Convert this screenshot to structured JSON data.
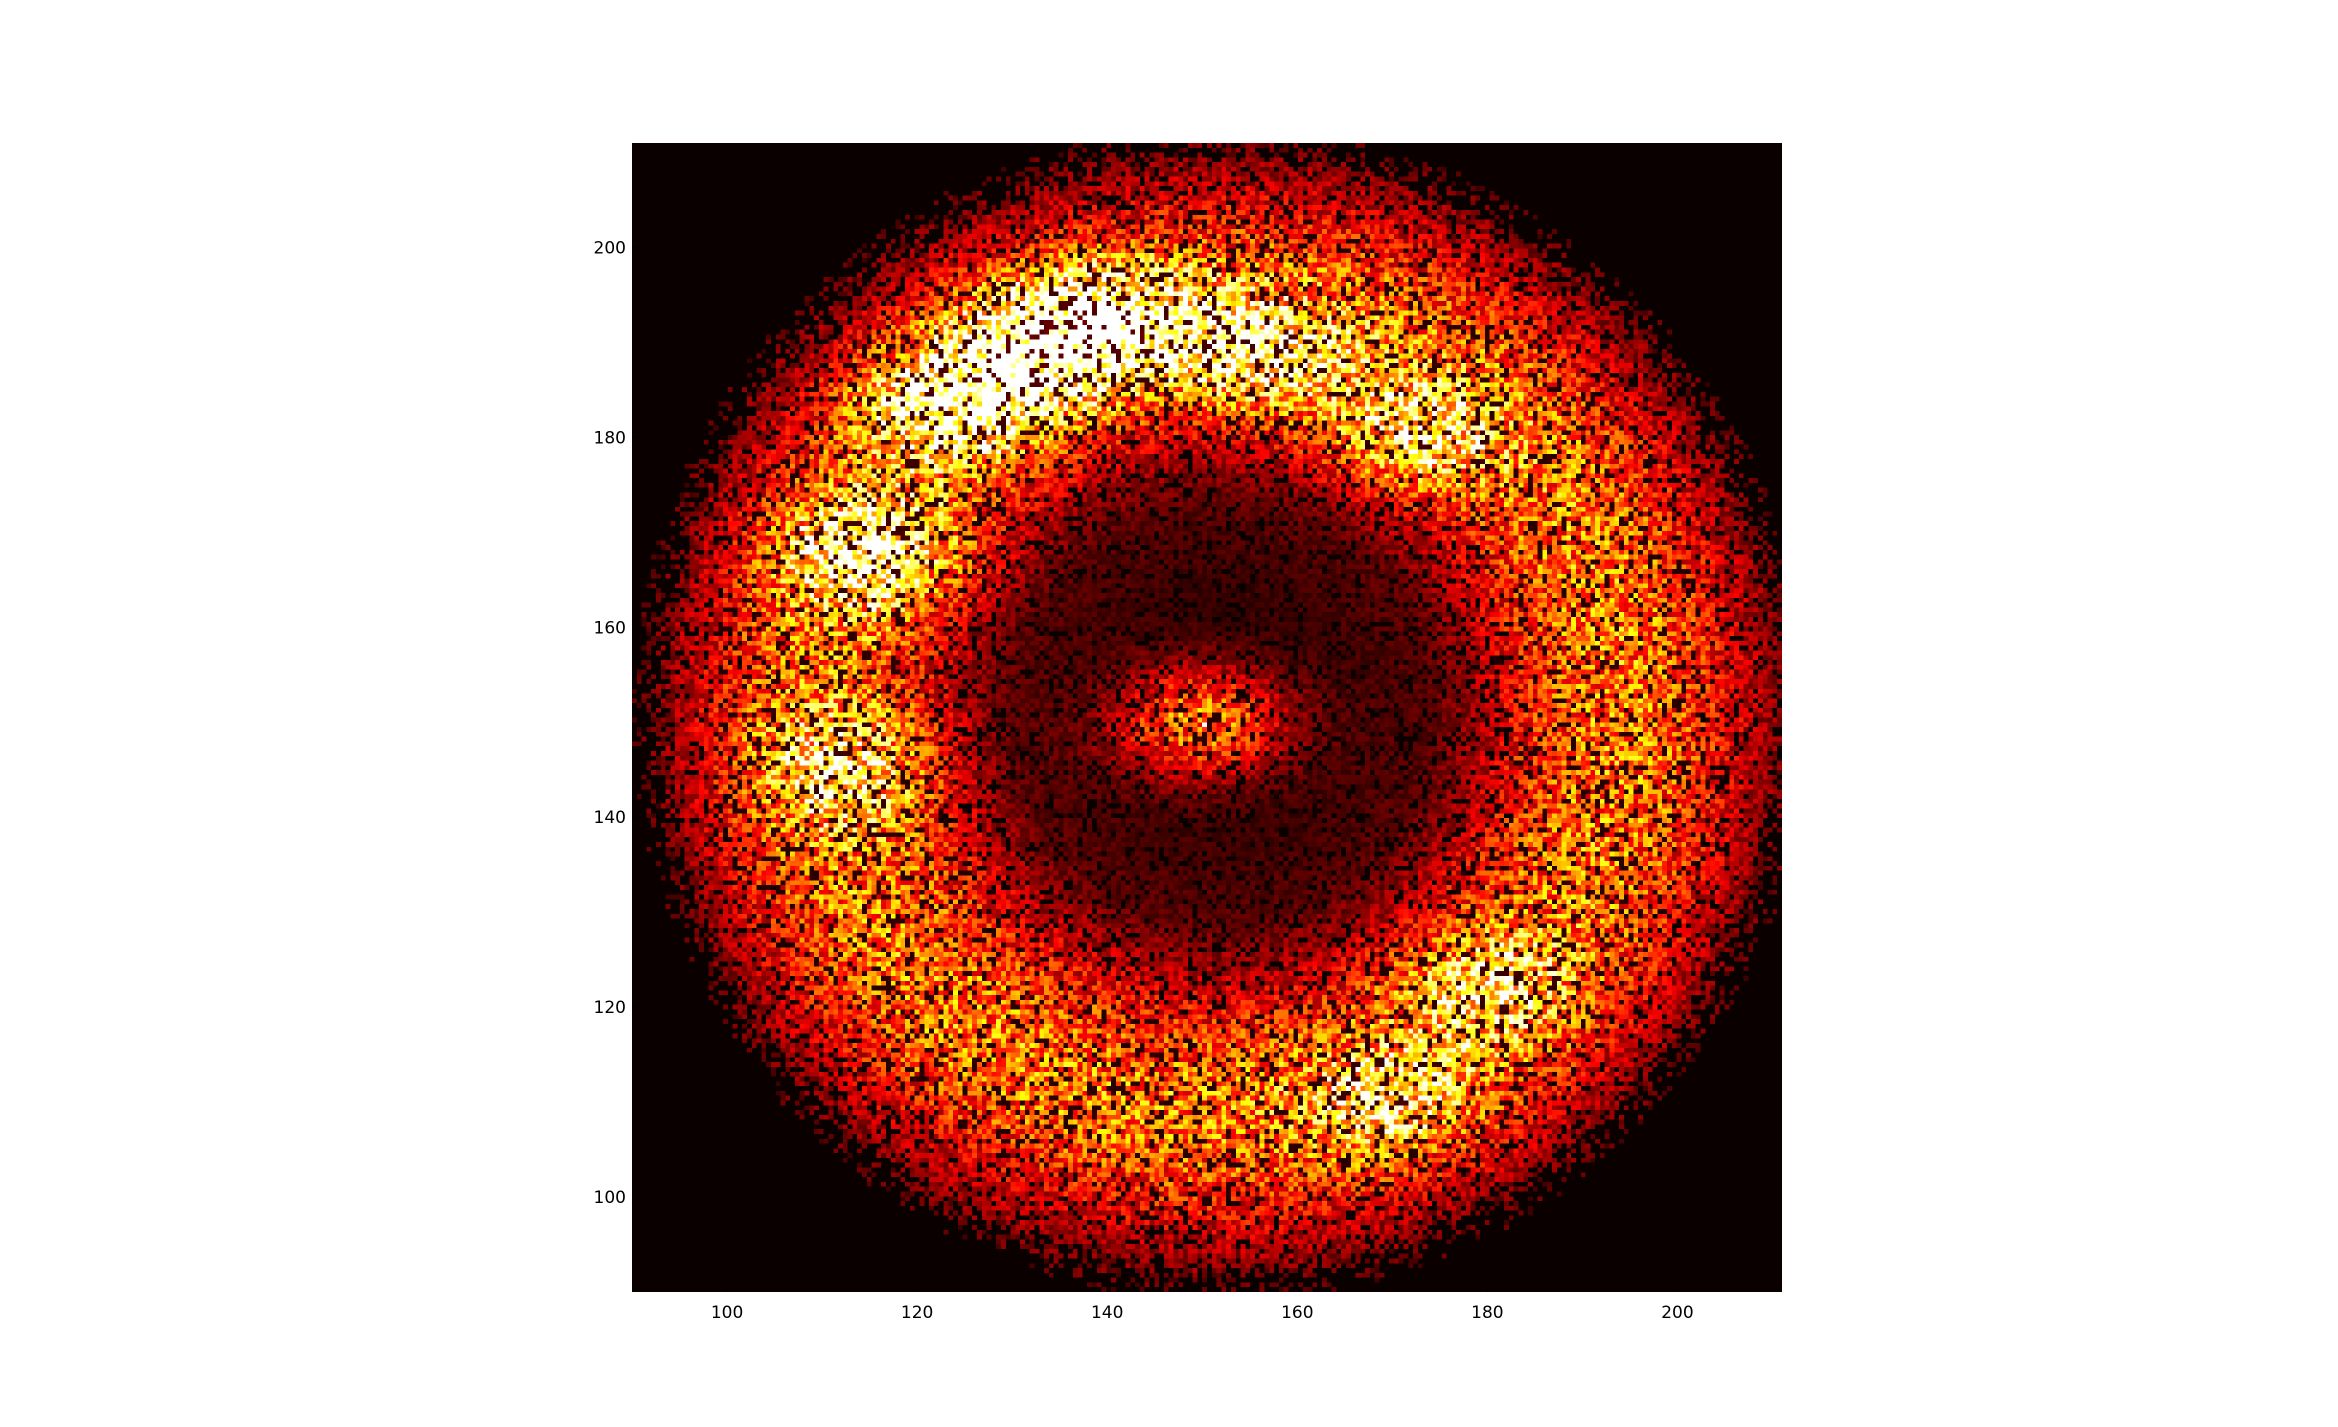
{
  "chart_data": {
    "type": "heatmap",
    "title": "",
    "xlabel": "",
    "ylabel": "",
    "colormap": "hot",
    "background_color": "#0b0000",
    "xlim": [
      90,
      211
    ],
    "ylim": [
      90,
      211
    ],
    "xticks": [
      100,
      120,
      140,
      160,
      180,
      200
    ],
    "yticks": [
      100,
      120,
      140,
      160,
      180,
      200
    ],
    "xtick_labels": [
      "100",
      "120",
      "140",
      "160",
      "180",
      "200"
    ],
    "ytick_labels": [
      "100",
      "120",
      "140",
      "160",
      "180",
      "200"
    ],
    "grid": false,
    "ring": {
      "center_x": 152,
      "center_y": 151,
      "peak_radius": 42,
      "outer_radius": 58
    },
    "hotspots": [
      {
        "x": 124,
        "y": 184,
        "intensity": 1.0
      },
      {
        "x": 133,
        "y": 190,
        "intensity": 1.0
      },
      {
        "x": 141,
        "y": 192,
        "intensity": 0.95
      },
      {
        "x": 156,
        "y": 189,
        "intensity": 0.8
      },
      {
        "x": 172,
        "y": 180,
        "intensity": 0.65
      },
      {
        "x": 115,
        "y": 168,
        "intensity": 0.85
      },
      {
        "x": 112,
        "y": 145,
        "intensity": 0.6
      },
      {
        "x": 170,
        "y": 110,
        "intensity": 0.55
      },
      {
        "x": 180,
        "y": 122,
        "intensity": 0.5
      },
      {
        "x": 150,
        "y": 150,
        "intensity": 1.0
      }
    ]
  }
}
